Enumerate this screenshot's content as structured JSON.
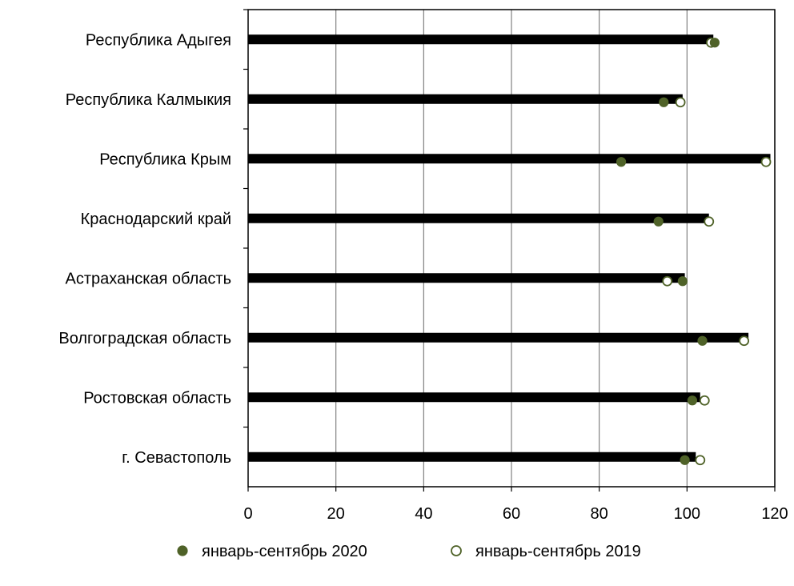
{
  "chart_data": {
    "type": "bar",
    "categories": [
      "Республика Адыгея",
      "Республика Калмыкия",
      "Республика Крым",
      "Краснодарский край",
      "Астраханская область",
      "Волгоградская область",
      "Ростовская область",
      "г. Севастополь"
    ],
    "bar_values": [
      106,
      99,
      119,
      105,
      99.5,
      114,
      103,
      102
    ],
    "series": [
      {
        "name": "январь-сентябрь 2020",
        "values": [
          106.3,
          94.7,
          85,
          93.5,
          99,
          103.5,
          101.2,
          99.5
        ],
        "marker": "filled-circle"
      },
      {
        "name": "январь-сентябрь 2019",
        "values": [
          105.5,
          98.5,
          118,
          105,
          95.5,
          113,
          104,
          103
        ],
        "marker": "hollow-circle"
      }
    ],
    "xlim": [
      0,
      120
    ],
    "xticks": [
      "0",
      "20",
      "40",
      "60",
      "80",
      "100",
      "120"
    ],
    "xlabel": "",
    "ylabel": "",
    "title": "",
    "grid": "vertical",
    "legend_placement": "bottom",
    "colors": {
      "bar": "#000000",
      "marker": "#4f6228",
      "grid": "#808080",
      "axis": "#000000",
      "background": "#ffffff"
    }
  }
}
